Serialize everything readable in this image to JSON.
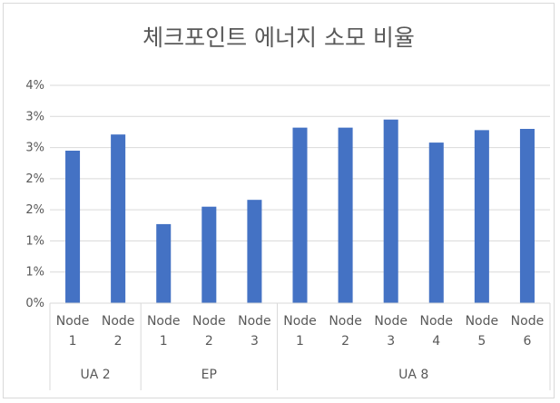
{
  "chart_data": {
    "type": "bar",
    "title": "체크포인트 에너지 소모 비율",
    "xlabel": "",
    "ylabel": "",
    "ylim": [
      0,
      3.5
    ],
    "yticks": [
      "0%",
      "1%",
      "1%",
      "2%",
      "2%",
      "3%",
      "3%",
      "4%"
    ],
    "grid": true,
    "legend": "none",
    "bar_color": "#4472c4",
    "groups": [
      {
        "label": "UA 2",
        "categories": [
          [
            "Node",
            "1"
          ],
          [
            "Node",
            "2"
          ]
        ],
        "values": [
          2.45,
          2.71
        ]
      },
      {
        "label": "EP",
        "categories": [
          [
            "Node",
            "1"
          ],
          [
            "Node",
            "2"
          ],
          [
            "Node",
            "3"
          ]
        ],
        "values": [
          1.27,
          1.55,
          1.66
        ]
      },
      {
        "label": "UA 8",
        "categories": [
          [
            "Node",
            "1"
          ],
          [
            "Node",
            "2"
          ],
          [
            "Node",
            "3"
          ],
          [
            "Node",
            "4"
          ],
          [
            "Node",
            "5"
          ],
          [
            "Node",
            "6"
          ]
        ],
        "values": [
          2.82,
          2.82,
          2.95,
          2.58,
          2.78,
          2.8
        ]
      }
    ]
  }
}
